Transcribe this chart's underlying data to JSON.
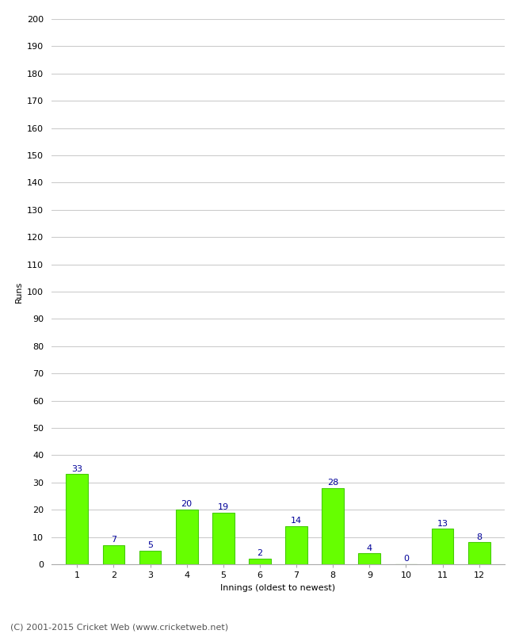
{
  "categories": [
    1,
    2,
    3,
    4,
    5,
    6,
    7,
    8,
    9,
    10,
    11,
    12
  ],
  "values": [
    33,
    7,
    5,
    20,
    19,
    2,
    14,
    28,
    4,
    0,
    13,
    8
  ],
  "bar_color": "#66ff00",
  "bar_edge_color": "#44cc00",
  "label_color": "#000099",
  "xlabel": "Innings (oldest to newest)",
  "ylabel": "Runs",
  "ylim": [
    0,
    200
  ],
  "yticks": [
    0,
    10,
    20,
    30,
    40,
    50,
    60,
    70,
    80,
    90,
    100,
    110,
    120,
    130,
    140,
    150,
    160,
    170,
    180,
    190,
    200
  ],
  "background_color": "#ffffff",
  "footer": "(C) 2001-2015 Cricket Web (www.cricketweb.net)",
  "grid_color": "#cccccc",
  "label_fontsize": 8,
  "axis_fontsize": 8,
  "footer_fontsize": 8,
  "ylabel_fontsize": 8,
  "xlabel_fontsize": 8
}
